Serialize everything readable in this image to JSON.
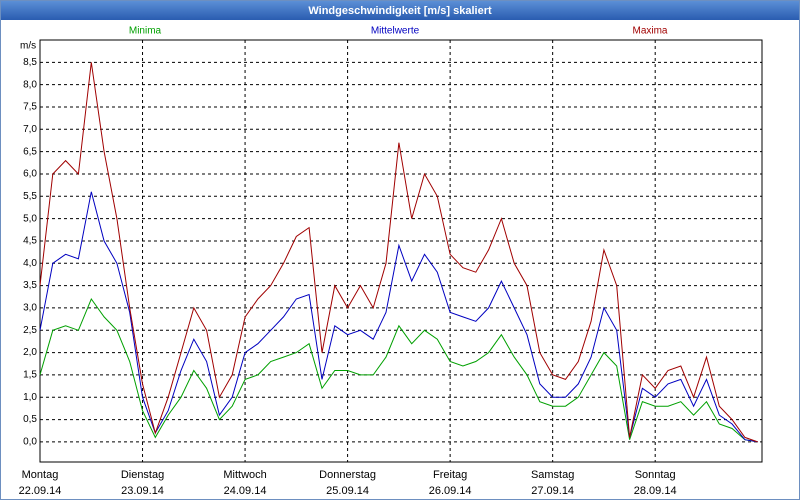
{
  "chart_data": {
    "type": "line",
    "title": "Windgeschwindigkeit [m/s] skaliert",
    "ylabel": "m/s",
    "x": [
      0,
      3,
      6,
      9,
      12,
      15,
      18,
      21,
      24,
      27,
      30,
      33,
      36,
      39,
      42,
      45,
      48,
      51,
      54,
      57,
      60,
      63,
      66,
      69,
      72,
      75,
      78,
      81,
      84,
      87,
      90,
      93,
      96,
      99,
      102,
      105,
      108,
      111,
      114,
      117,
      120,
      123,
      126,
      129,
      132,
      135,
      138,
      141,
      144,
      147,
      150,
      153,
      156,
      159,
      162,
      165,
      168
    ],
    "series": [
      {
        "name": "Minima",
        "color": "#00a000",
        "values": [
          1.5,
          2.5,
          2.6,
          2.5,
          3.2,
          2.8,
          2.5,
          1.8,
          0.7,
          0.1,
          0.6,
          1.0,
          1.6,
          1.2,
          0.5,
          0.8,
          1.4,
          1.5,
          1.8,
          1.9,
          2.0,
          2.2,
          1.2,
          1.6,
          1.6,
          1.5,
          1.5,
          1.9,
          2.6,
          2.2,
          2.5,
          2.3,
          1.8,
          1.7,
          1.8,
          2.0,
          2.4,
          1.9,
          1.5,
          0.9,
          0.8,
          0.8,
          1.0,
          1.5,
          2.0,
          1.7,
          0.05,
          0.9,
          0.8,
          0.8,
          0.9,
          0.6,
          0.9,
          0.4,
          0.3,
          0.05,
          0.0
        ]
      },
      {
        "name": "Mittelwerte",
        "color": "#0000c0",
        "values": [
          2.5,
          4.0,
          4.2,
          4.1,
          5.6,
          4.5,
          4.0,
          2.9,
          1.0,
          0.2,
          0.7,
          1.6,
          2.3,
          1.8,
          0.6,
          1.0,
          2.0,
          2.2,
          2.5,
          2.8,
          3.2,
          3.3,
          1.4,
          2.6,
          2.4,
          2.5,
          2.3,
          2.9,
          4.4,
          3.6,
          4.2,
          3.8,
          2.9,
          2.8,
          2.7,
          3.0,
          3.6,
          3.0,
          2.4,
          1.3,
          1.0,
          1.0,
          1.3,
          1.9,
          3.0,
          2.5,
          0.1,
          1.2,
          1.0,
          1.3,
          1.4,
          0.8,
          1.4,
          0.6,
          0.4,
          0.05,
          0.0
        ]
      },
      {
        "name": "Maxima",
        "color": "#a00000",
        "values": [
          3.5,
          6.0,
          6.3,
          6.0,
          8.5,
          6.5,
          5.0,
          3.0,
          1.3,
          0.2,
          1.0,
          2.0,
          3.0,
          2.5,
          1.0,
          1.5,
          2.8,
          3.2,
          3.5,
          4.0,
          4.6,
          4.8,
          2.0,
          3.5,
          3.0,
          3.5,
          3.0,
          4.0,
          6.7,
          5.0,
          6.0,
          5.5,
          4.2,
          3.9,
          3.8,
          4.3,
          5.0,
          4.0,
          3.5,
          2.0,
          1.5,
          1.4,
          1.8,
          2.7,
          4.3,
          3.5,
          0.1,
          1.5,
          1.2,
          1.6,
          1.7,
          1.0,
          1.9,
          0.8,
          0.5,
          0.1,
          0.0
        ]
      }
    ],
    "xlim": [
      0,
      169
    ],
    "xticks": [
      {
        "value": 0,
        "label": "Montag"
      },
      {
        "value": 24,
        "label": "Dienstag"
      },
      {
        "value": 48,
        "label": "Mittwoch"
      },
      {
        "value": 72,
        "label": "Donnerstag"
      },
      {
        "value": 96,
        "label": "Freitag"
      },
      {
        "value": 120,
        "label": "Samstag"
      },
      {
        "value": 144,
        "label": "Sonntag"
      }
    ],
    "xtick_dates": [
      "22.09.14",
      "23.09.14",
      "24.09.14",
      "25.09.14",
      "26.09.14",
      "27.09.14",
      "28.09.14"
    ],
    "ylim": [
      -0.45,
      9
    ],
    "yticks": [
      {
        "value": 0,
        "label": "0,0"
      },
      {
        "value": 0.5,
        "label": "0,5"
      },
      {
        "value": 1,
        "label": "1,0"
      },
      {
        "value": 1.5,
        "label": "1,5"
      },
      {
        "value": 2,
        "label": "2,0"
      },
      {
        "value": 2.5,
        "label": "2,5"
      },
      {
        "value": 3,
        "label": "3,0"
      },
      {
        "value": 3.5,
        "label": "3,5"
      },
      {
        "value": 4,
        "label": "4,0"
      },
      {
        "value": 4.5,
        "label": "4,5"
      },
      {
        "value": 5,
        "label": "5,0"
      },
      {
        "value": 5.5,
        "label": "5,5"
      },
      {
        "value": 6,
        "label": "6,0"
      },
      {
        "value": 6.5,
        "label": "6,5"
      },
      {
        "value": 7,
        "label": "7,0"
      },
      {
        "value": 7.5,
        "label": "7,5"
      },
      {
        "value": 8,
        "label": "8,0"
      },
      {
        "value": 8.5,
        "label": "8,5"
      }
    ],
    "grid": true
  }
}
